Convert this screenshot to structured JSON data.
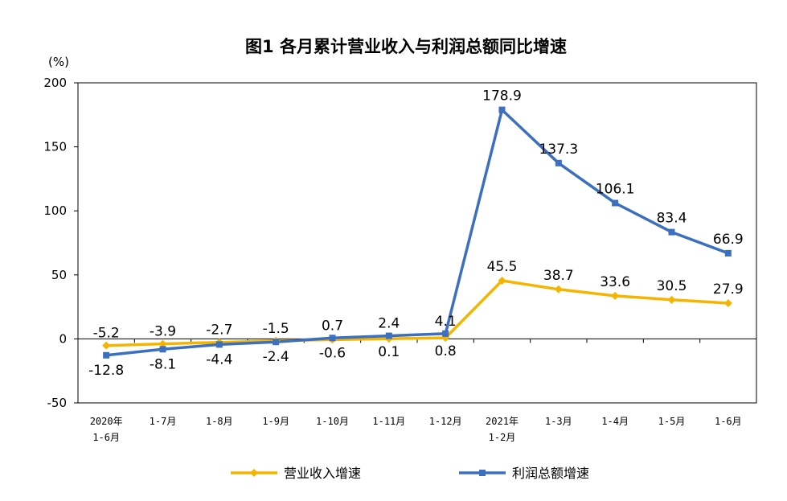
{
  "chart_data": {
    "type": "line",
    "title": "图1  各月累计营业收入与利润总额同比增速",
    "ylabel": "(%)",
    "ylim": [
      -50,
      200
    ],
    "yticks": [
      200,
      150,
      100,
      50,
      0,
      -50
    ],
    "categories": [
      [
        "2020年",
        "1-6月"
      ],
      [
        "1-7月"
      ],
      [
        "1-8月"
      ],
      [
        "1-9月"
      ],
      [
        "1-10月"
      ],
      [
        "1-11月"
      ],
      [
        "1-12月"
      ],
      [
        "2021年",
        "1-2月"
      ],
      [
        "1-3月"
      ],
      [
        "1-4月"
      ],
      [
        "1-5月"
      ],
      [
        "1-6月"
      ]
    ],
    "series": [
      {
        "name": "营业收入增速",
        "color": "#f4b400",
        "marker": "diamond",
        "values": [
          -5.2,
          -3.9,
          -2.7,
          -1.5,
          -0.6,
          0.1,
          0.8,
          45.5,
          38.7,
          33.6,
          30.5,
          27.9
        ],
        "labels": [
          "-5.2",
          "-3.9",
          "-2.7",
          "-1.5",
          "-0.6",
          "0.1",
          "0.8",
          "45.5",
          "38.7",
          "33.6",
          "30.5",
          "27.9"
        ]
      },
      {
        "name": "利润总额增速",
        "color": "#3b6fbf",
        "marker": "square",
        "values": [
          -12.8,
          -8.1,
          -4.4,
          -2.4,
          0.7,
          2.4,
          4.1,
          178.9,
          137.3,
          106.1,
          83.4,
          66.9
        ],
        "labels": [
          "-12.8",
          "-8.1",
          "-4.4",
          "-2.4",
          "0.7",
          "2.4",
          "4.1",
          "178.9",
          "137.3",
          "106.1",
          "83.4",
          "66.9"
        ]
      }
    ],
    "legend": "bottom",
    "grid": false
  }
}
